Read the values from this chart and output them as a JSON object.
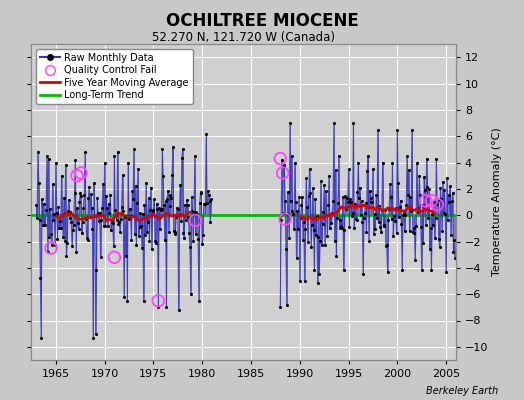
{
  "title": "OCHILTREE MIOCENE",
  "subtitle": "52.270 N, 121.720 W (Canada)",
  "ylabel_right": "Temperature Anomaly (°C)",
  "watermark": "Berkeley Earth",
  "ylim": [
    -11,
    13
  ],
  "yticks": [
    -10,
    -8,
    -6,
    -4,
    -2,
    0,
    2,
    4,
    6,
    8,
    10,
    12
  ],
  "xlim": [
    1962.5,
    2006.0
  ],
  "xticks": [
    1965,
    1970,
    1975,
    1980,
    1985,
    1990,
    1995,
    2000,
    2005
  ],
  "bg_color": "#c8c8c8",
  "plot_bg_color": "#d0d0d0",
  "grid_color": "#ffffff",
  "raw_line_color": "#3333bb",
  "raw_line_alpha": 0.55,
  "raw_dot_color": "#000000",
  "ma_color": "#dd0000",
  "ma_linewidth": 1.8,
  "trend_color": "#00bb00",
  "trend_linewidth": 2.0,
  "qc_color": "#ff44ff",
  "qc_markersize": 7
}
